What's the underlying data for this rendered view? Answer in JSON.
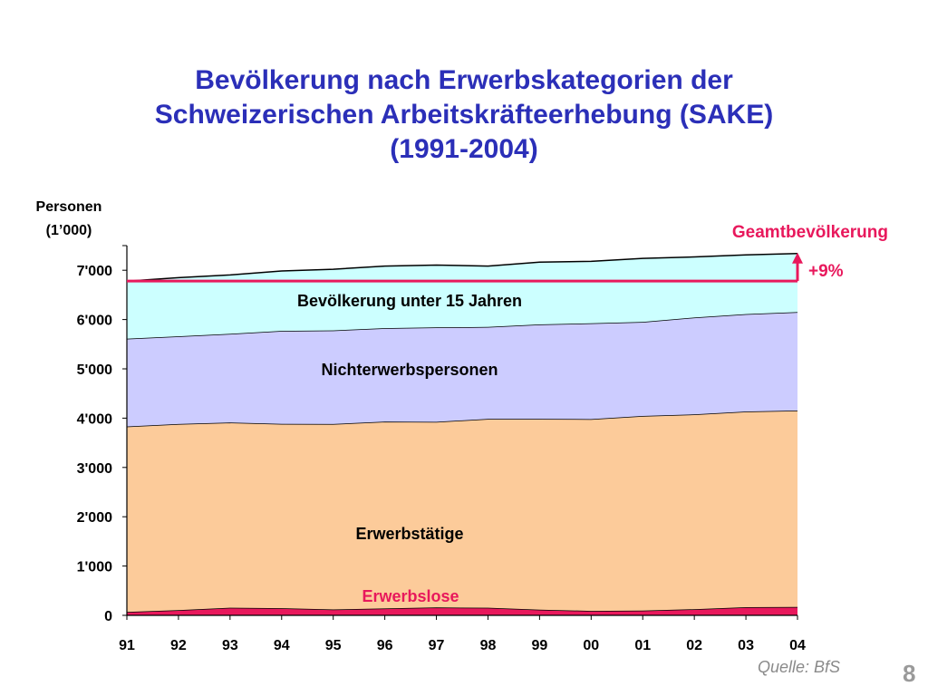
{
  "slide": {
    "title_lines": [
      "Bevölkerung nach Erwerbskategorien der",
      "Schweizerischen Arbeitskräfteerhebung (SAKE)",
      "(1991-2004)"
    ],
    "source": "Quelle: BfS",
    "page_number": "8"
  },
  "chart_data": {
    "type": "area",
    "stacked": true,
    "ylabel_lines": [
      "Personen",
      "(1’000)"
    ],
    "categories": [
      "91",
      "92",
      "93",
      "94",
      "95",
      "96",
      "97",
      "98",
      "99",
      "00",
      "01",
      "02",
      "03",
      "04"
    ],
    "ylim": [
      0,
      7500
    ],
    "yticks": [
      0,
      1000,
      2000,
      3000,
      4000,
      5000,
      6000,
      7000
    ],
    "ytick_labels": [
      "0",
      "1'000",
      "2'000",
      "3'000",
      "4'000",
      "5'000",
      "6'000",
      "7'000"
    ],
    "grid": false,
    "series": [
      {
        "name": "Erwerbslose",
        "color": "#e8185c",
        "label_color": "#e8185c",
        "values": [
          70,
          105,
          155,
          145,
          120,
          140,
          160,
          155,
          115,
          90,
          95,
          125,
          165,
          170
        ]
      },
      {
        "name": "Erwerbstätige",
        "color": "#fccb9a",
        "label_color": "#000000",
        "values": [
          3760,
          3775,
          3755,
          3740,
          3760,
          3790,
          3765,
          3830,
          3870,
          3890,
          3950,
          3950,
          3970,
          3985
        ]
      },
      {
        "name": "Nichterwerbspersonen",
        "color": "#ccccff",
        "label_color": "#000000",
        "values": [
          1780,
          1780,
          1800,
          1885,
          1900,
          1895,
          1915,
          1865,
          1915,
          1945,
          1905,
          1965,
          1975,
          1995
        ]
      },
      {
        "name": "Bevölkerung unter 15 Jahren",
        "color": "#ccffff",
        "label_color": "#000000",
        "values": [
          1170,
          1190,
          1195,
          1215,
          1240,
          1260,
          1265,
          1235,
          1265,
          1255,
          1290,
          1230,
          1200,
          1190
        ]
      }
    ],
    "annotations": {
      "total_label": "Geamtbevölkerung",
      "change_label": "+9%",
      "reference_value": 6780,
      "accent_color": "#e8185c"
    }
  }
}
